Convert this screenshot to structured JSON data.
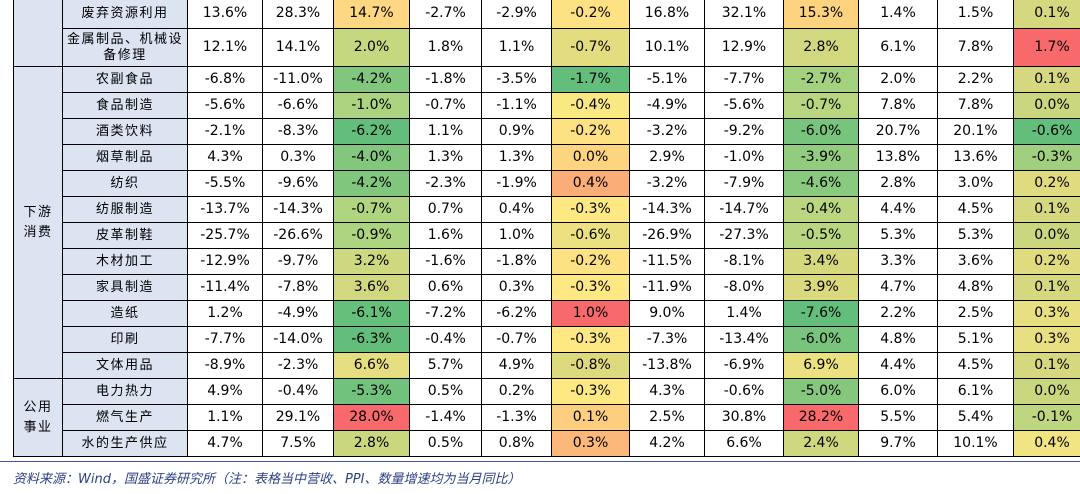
{
  "colors": {
    "header_bg": "#dce3f1",
    "scale": [
      "#f8696b",
      "#fa9d75",
      "#fdce7f",
      "#feeb84",
      "#ddd97e",
      "#b1d580",
      "#63be7b"
    ]
  },
  "groups": [
    {
      "label": "",
      "rows": [
        {
          "name": "废弃资源利用",
          "values": [
            "13.6%",
            "28.3%",
            "14.7%",
            "-2.7%",
            "-2.9%",
            "-0.2%",
            "16.8%",
            "32.1%",
            "15.3%",
            "1.4%",
            "1.5%",
            "0.1%"
          ]
        },
        {
          "name": "金属制品、机械设备修理",
          "values": [
            "12.1%",
            "14.1%",
            "2.0%",
            "1.8%",
            "1.1%",
            "-0.7%",
            "10.1%",
            "12.9%",
            "2.8%",
            "6.1%",
            "7.8%",
            "1.7%"
          ]
        }
      ]
    },
    {
      "label": "下游消费",
      "rows": [
        {
          "name": "农副食品",
          "values": [
            "-6.8%",
            "-11.0%",
            "-4.2%",
            "-1.8%",
            "-3.5%",
            "-1.7%",
            "-5.1%",
            "-7.7%",
            "-2.7%",
            "2.0%",
            "2.2%",
            "0.1%"
          ]
        },
        {
          "name": "食品制造",
          "values": [
            "-5.6%",
            "-6.6%",
            "-1.0%",
            "-0.7%",
            "-1.1%",
            "-0.4%",
            "-4.9%",
            "-5.6%",
            "-0.7%",
            "7.8%",
            "7.8%",
            "0.0%"
          ]
        },
        {
          "name": "酒类饮料",
          "values": [
            "-2.1%",
            "-8.3%",
            "-6.2%",
            "1.1%",
            "0.9%",
            "-0.2%",
            "-3.2%",
            "-9.2%",
            "-6.0%",
            "20.7%",
            "20.1%",
            "-0.6%"
          ]
        },
        {
          "name": "烟草制品",
          "values": [
            "4.3%",
            "0.3%",
            "-4.0%",
            "1.3%",
            "1.3%",
            "0.0%",
            "2.9%",
            "-1.0%",
            "-3.9%",
            "13.8%",
            "13.6%",
            "-0.3%"
          ]
        },
        {
          "name": "纺织",
          "values": [
            "-5.5%",
            "-9.6%",
            "-4.2%",
            "-2.3%",
            "-1.9%",
            "0.4%",
            "-3.2%",
            "-7.9%",
            "-4.6%",
            "2.8%",
            "3.0%",
            "0.2%"
          ]
        },
        {
          "name": "纺服制造",
          "values": [
            "-13.7%",
            "-14.3%",
            "-0.7%",
            "0.7%",
            "0.4%",
            "-0.3%",
            "-14.3%",
            "-14.7%",
            "-0.4%",
            "4.4%",
            "4.5%",
            "0.1%"
          ]
        },
        {
          "name": "皮革制鞋",
          "values": [
            "-25.7%",
            "-26.6%",
            "-0.9%",
            "1.6%",
            "1.0%",
            "-0.6%",
            "-26.9%",
            "-27.3%",
            "-0.5%",
            "5.3%",
            "5.3%",
            "0.0%"
          ]
        },
        {
          "name": "木材加工",
          "values": [
            "-12.9%",
            "-9.7%",
            "3.2%",
            "-1.6%",
            "-1.8%",
            "-0.2%",
            "-11.5%",
            "-8.1%",
            "3.4%",
            "3.3%",
            "3.6%",
            "0.2%"
          ]
        },
        {
          "name": "家具制造",
          "values": [
            "-11.4%",
            "-7.8%",
            "3.6%",
            "0.6%",
            "0.3%",
            "-0.3%",
            "-11.9%",
            "-8.0%",
            "3.9%",
            "4.7%",
            "4.8%",
            "0.1%"
          ]
        },
        {
          "name": "造纸",
          "values": [
            "1.2%",
            "-4.9%",
            "-6.1%",
            "-7.2%",
            "-6.2%",
            "1.0%",
            "9.0%",
            "1.4%",
            "-7.6%",
            "2.2%",
            "2.5%",
            "0.3%"
          ]
        },
        {
          "name": "印刷",
          "values": [
            "-7.7%",
            "-14.0%",
            "-6.3%",
            "-0.4%",
            "-0.7%",
            "-0.3%",
            "-7.3%",
            "-13.4%",
            "-6.0%",
            "4.8%",
            "5.1%",
            "0.3%"
          ]
        },
        {
          "name": "文体用品",
          "values": [
            "-8.9%",
            "-2.3%",
            "6.6%",
            "5.7%",
            "4.9%",
            "-0.8%",
            "-13.8%",
            "-6.9%",
            "6.9%",
            "4.4%",
            "4.5%",
            "0.1%"
          ]
        }
      ]
    },
    {
      "label": "公用事业",
      "rows": [
        {
          "name": "电力热力",
          "values": [
            "4.9%",
            "-0.4%",
            "-5.3%",
            "0.5%",
            "0.2%",
            "-0.3%",
            "4.3%",
            "-0.6%",
            "-5.0%",
            "6.0%",
            "6.1%",
            "0.0%"
          ]
        },
        {
          "name": "燃气生产",
          "values": [
            "1.1%",
            "29.1%",
            "28.0%",
            "-1.4%",
            "-1.3%",
            "0.1%",
            "2.5%",
            "30.8%",
            "28.2%",
            "5.5%",
            "5.4%",
            "-0.1%"
          ]
        },
        {
          "name": "水的生产供应",
          "values": [
            "4.7%",
            "7.5%",
            "2.8%",
            "0.5%",
            "0.8%",
            "0.3%",
            "4.2%",
            "6.6%",
            "2.4%",
            "9.7%",
            "10.1%",
            "0.4%"
          ]
        }
      ]
    }
  ],
  "footer": "资料来源：Wind，国盛证券研究所（注：表格当中营收、PPI、数量增速均为当月同比）"
}
